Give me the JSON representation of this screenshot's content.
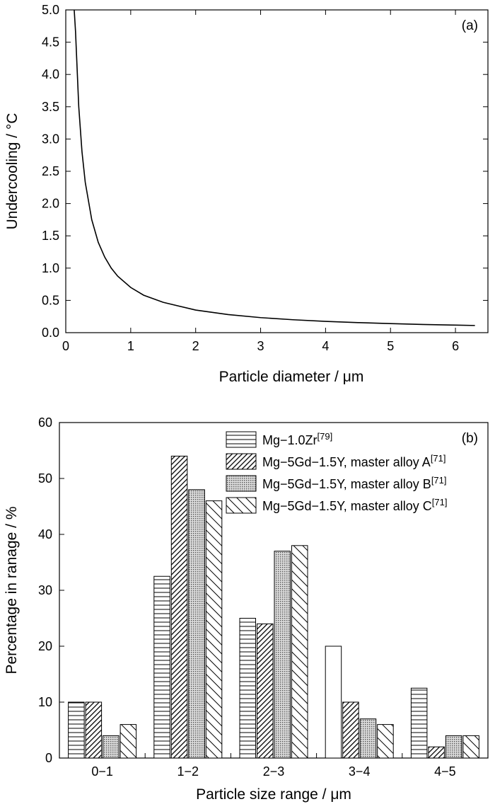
{
  "chart_data": [
    {
      "panel": "(a)",
      "type": "line",
      "xlabel": "Particle diameter / μm",
      "ylabel": "Undercooling / °C",
      "xlim": [
        0,
        6.5
      ],
      "ylim": [
        0,
        5.0
      ],
      "xticks": [
        "0",
        "1",
        "2",
        "3",
        "4",
        "5",
        "6"
      ],
      "yticks": [
        "0.0",
        "0.5",
        "1.0",
        "1.5",
        "2.0",
        "2.5",
        "3.0",
        "3.5",
        "4.0",
        "4.5",
        "5.0"
      ],
      "grid": false,
      "series": [
        {
          "x": [
            0.13,
            0.15,
            0.2,
            0.25,
            0.3,
            0.4,
            0.5,
            0.6,
            0.7,
            0.8,
            1.0,
            1.2,
            1.5,
            2.0,
            2.5,
            3.0,
            3.5,
            4.0,
            4.5,
            5.0,
            5.5,
            6.0,
            6.3
          ],
          "y": [
            5.2,
            4.67,
            3.5,
            2.8,
            2.33,
            1.75,
            1.4,
            1.17,
            1.0,
            0.875,
            0.7,
            0.58,
            0.47,
            0.35,
            0.28,
            0.233,
            0.2,
            0.175,
            0.156,
            0.14,
            0.127,
            0.117,
            0.111
          ]
        }
      ]
    },
    {
      "panel": "(b)",
      "type": "bar",
      "xlabel": "Particle size range / μm",
      "ylabel": "Percentage in ranage / %",
      "ylim": [
        0,
        60
      ],
      "yticks": [
        "0",
        "10",
        "20",
        "30",
        "40",
        "50",
        "60"
      ],
      "categories": [
        "0−1",
        "1−2",
        "2−3",
        "3−4",
        "4−5"
      ],
      "legend_position": "top-right",
      "grid": false,
      "series": [
        {
          "name": "Mg−1.0Zr",
          "ref": "[79]",
          "pattern": "hlines",
          "values": [
            10,
            32.5,
            25,
            20,
            12.5
          ]
        },
        {
          "name": "Mg−5Gd−1.5Y, master alloy A",
          "ref": "[71]",
          "pattern": "dense-diag",
          "values": [
            10,
            54,
            24,
            10,
            2
          ]
        },
        {
          "name": "Mg−5Gd−1.5Y, master alloy B",
          "ref": "[71]",
          "pattern": "dots",
          "values": [
            4,
            48,
            37,
            7,
            4
          ]
        },
        {
          "name": "Mg−5Gd−1.5Y, master alloy C",
          "ref": "[71]",
          "pattern": "wide-diag",
          "values": [
            6,
            46,
            38,
            6,
            4
          ]
        }
      ]
    }
  ]
}
